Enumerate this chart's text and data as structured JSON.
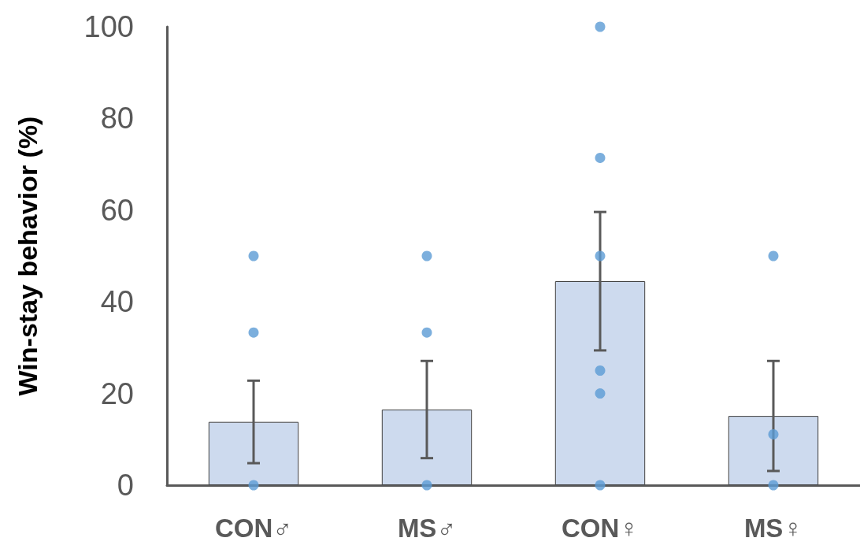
{
  "chart_data": {
    "type": "bar",
    "ylabel": "Win-stay behavior (%)",
    "categories": [
      "CON♂",
      "MS♂",
      "CON♀",
      "MS♀"
    ],
    "series": [
      {
        "color": "#cddaee",
        "values": [
          13.8,
          16.5,
          44.5,
          15.1
        ],
        "errors": [
          9,
          10.6,
          15.1,
          12
        ]
      },
      {
        "type": "scatter",
        "color": "#5b9bd5",
        "x": [
          "CON♂",
          "CON♂",
          "CON♂",
          "MS♂",
          "MS♂",
          "MS♂",
          "CON♀",
          "CON♀",
          "CON♀",
          "CON♀",
          "CON♀",
          "CON♀",
          "MS♀",
          "MS♀",
          "MS♀"
        ],
        "values": [
          50,
          33.3,
          0,
          50,
          33.3,
          0,
          100,
          71.4,
          50,
          25,
          20,
          0,
          50,
          11.1,
          0
        ]
      }
    ],
    "ylim": [
      0,
      100
    ],
    "yticks": [
      0,
      20,
      40,
      60,
      80,
      100
    ],
    "marker": "circle"
  }
}
